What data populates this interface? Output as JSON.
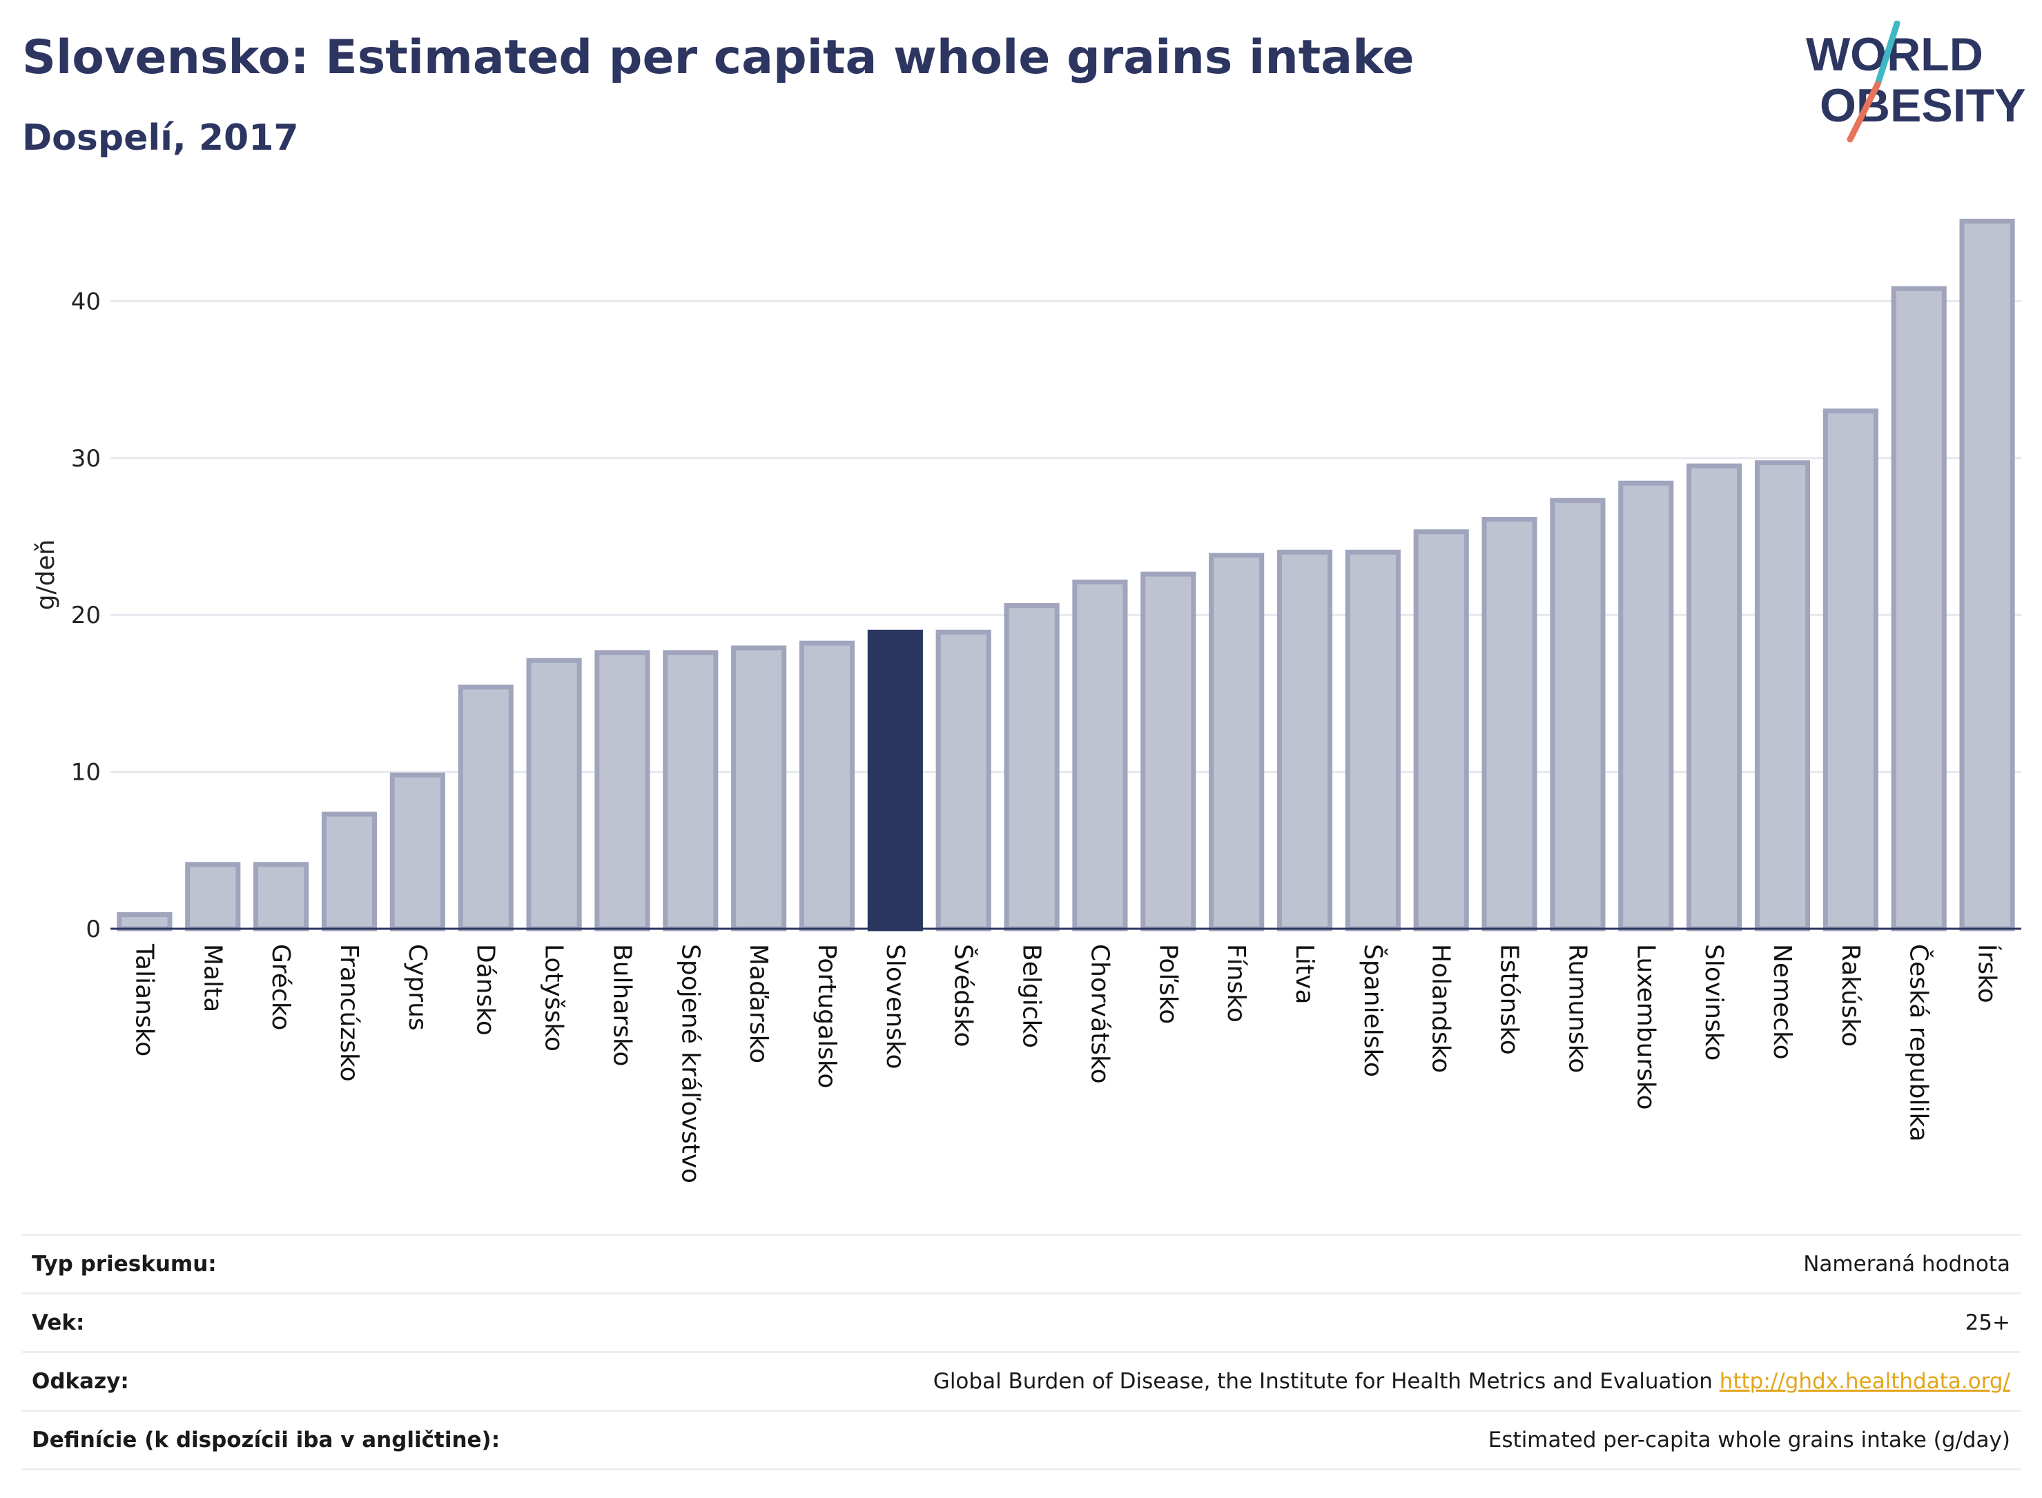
{
  "header": {
    "title": "Slovensko: Estimated per capita whole grains intake",
    "subtitle": "Dospelí, 2017"
  },
  "logo": {
    "line1": "WORLD",
    "line2": "OBESITY",
    "slash_colors": [
      "#3fb8c4",
      "#e8735a"
    ]
  },
  "chart_data": {
    "type": "bar",
    "ylabel": "g/deň",
    "ylim": [
      0,
      46
    ],
    "yticks": [
      0,
      10,
      20,
      30,
      40
    ],
    "grid": true,
    "highlight": "Slovensko",
    "colors": {
      "bar": "#bfc2d0",
      "bar_border": "#a0a5bd",
      "highlight": "#2b3660"
    },
    "categories": [
      "Taliansko",
      "Malta",
      "Grécko",
      "Francúzsko",
      "Cyprus",
      "Dánsko",
      "Lotyšsko",
      "Bulharsko",
      "Spojené kráľovstvo",
      "Maďarsko",
      "Portugalsko",
      "Slovensko",
      "Švédsko",
      "Belgicko",
      "Chorvátsko",
      "Poľsko",
      "Fínsko",
      "Litva",
      "Španielsko",
      "Holandsko",
      "Estónsko",
      "Rumunsko",
      "Luxembursko",
      "Slovinsko",
      "Nemecko",
      "Rakúsko",
      "Česká republika",
      "Írsko"
    ],
    "values": [
      0.9,
      4.1,
      4.1,
      7.3,
      9.8,
      15.4,
      17.1,
      17.6,
      17.6,
      17.9,
      18.2,
      18.9,
      18.9,
      20.6,
      22.1,
      22.6,
      23.8,
      24.0,
      24.0,
      25.3,
      26.1,
      27.3,
      28.4,
      29.5,
      29.7,
      33.0,
      40.8,
      45.1
    ]
  },
  "info": [
    {
      "label": "Typ prieskumu:",
      "value": "Nameraná hodnota"
    },
    {
      "label": "Vek:",
      "value": "25+"
    },
    {
      "label": "Odkazy:",
      "value": "Global Burden of Disease, the Institute for Health Metrics and Evaluation",
      "link": "http://ghdx.healthdata.org/"
    },
    {
      "label": "Definície (k dispozícii iba v angličtine):",
      "value": "Estimated per-capita whole grains intake (g/day)"
    }
  ]
}
